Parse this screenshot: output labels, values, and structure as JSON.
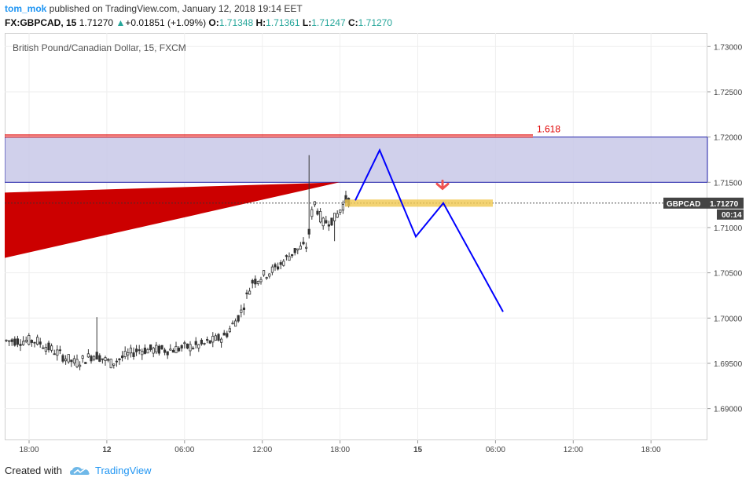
{
  "header": {
    "author": "tom_mok",
    "published_text": " published on TradingView.com, January 12, 2018 19:14 EET",
    "symbol": "FX:GBPCAD, 15",
    "last": "1.71270",
    "change": "+0.01851 (+1.09%)",
    "o_label": "O:",
    "o_value": "1.71348",
    "h_label": "H:",
    "h_value": "1.71361",
    "l_label": "L:",
    "l_value": "1.71247",
    "c_label": "C:",
    "c_value": "1.71270"
  },
  "footer": {
    "created_with": "Created with",
    "brand": "TradingView"
  },
  "colors": {
    "up": "#26a69a",
    "accent": "#2196f3",
    "fib_line": "#e00000",
    "zone_fill": "#c8c8e8",
    "projection": "#0000ff",
    "target_zone": "#f0c850",
    "arrow": "#ef5350",
    "wedge": "#cc0000"
  },
  "chart_data": {
    "type": "candlestick",
    "title": "British Pound/Canadian Dollar, 15, FXCM",
    "ylim": [
      1.6865,
      1.7315
    ],
    "y_ticks": [
      "1.73000",
      "1.72500",
      "1.72000",
      "1.71500",
      "1.71000",
      "1.70500",
      "1.70000",
      "1.69500",
      "1.69000"
    ],
    "y_tick_values": [
      1.73,
      1.725,
      1.72,
      1.715,
      1.71,
      1.705,
      1.7,
      1.695,
      1.69
    ],
    "x_ticks": [
      "18:00",
      "12",
      "06:00",
      "12:00",
      "18:00",
      "15",
      "06:00",
      "12:00",
      "18:00"
    ],
    "x_ticks_bold": [
      false,
      true,
      false,
      false,
      false,
      true,
      false,
      false,
      false
    ],
    "price_label": {
      "symbol": "GBPCAD",
      "value": "1.71270",
      "countdown": "00:14"
    },
    "current_price": 1.7127,
    "fib_label": "1.618",
    "fib_level": 1.7201,
    "zone": [
      1.715,
      1.72
    ],
    "target_zone": [
      1.7123,
      1.7131
    ],
    "grid": true,
    "legend": "none"
  }
}
